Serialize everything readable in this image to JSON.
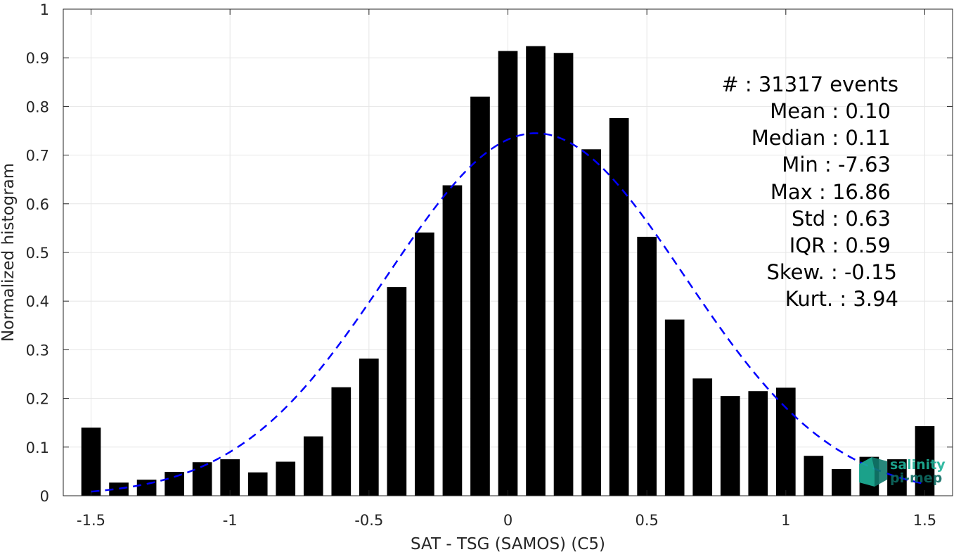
{
  "chart_data": {
    "type": "bar",
    "title": "",
    "xlabel": "SAT - TSG (SAMOS) (C5)",
    "ylabel": "Normalized histogram",
    "xlim": [
      -1.6,
      1.6
    ],
    "ylim": [
      0,
      1
    ],
    "grid": true,
    "bar_width": 0.07,
    "x_ticks": [
      -1.5,
      -1,
      -0.5,
      0,
      0.5,
      1,
      1.5
    ],
    "x_tick_labels": [
      "-1.5",
      "-1",
      "-0.5",
      "0",
      "0.5",
      "1",
      "1.5"
    ],
    "y_ticks": [
      0,
      0.1,
      0.2,
      0.3,
      0.4,
      0.5,
      0.6,
      0.7,
      0.8,
      0.9,
      1
    ],
    "y_tick_labels": [
      "0",
      "0.1",
      "0.2",
      "0.3",
      "0.4",
      "0.5",
      "0.6",
      "0.7",
      "0.8",
      "0.9",
      "1"
    ],
    "bars": {
      "x": [
        -1.5,
        -1.4,
        -1.3,
        -1.2,
        -1.1,
        -1.0,
        -0.9,
        -0.8,
        -0.7,
        -0.6,
        -0.5,
        -0.4,
        -0.3,
        -0.2,
        -0.1,
        0.0,
        0.1,
        0.2,
        0.3,
        0.4,
        0.5,
        0.6,
        0.7,
        0.8,
        0.9,
        1.0,
        1.1,
        1.2,
        1.3,
        1.4,
        1.5
      ],
      "values": [
        0.14,
        0.027,
        0.033,
        0.049,
        0.069,
        0.075,
        0.048,
        0.07,
        0.122,
        0.223,
        0.282,
        0.429,
        0.541,
        0.638,
        0.82,
        0.914,
        0.924,
        0.91,
        0.712,
        0.776,
        0.532,
        0.362,
        0.241,
        0.205,
        0.215,
        0.222,
        0.082,
        0.055,
        0.08,
        0.075,
        0.143
      ],
      "color": "#000000"
    },
    "fit_curve": {
      "style": "dashed",
      "color": "#0000ff",
      "mean": 0.1,
      "std": 0.535,
      "peak": 0.745,
      "x_range": [
        -1.5,
        1.5
      ]
    },
    "stats": [
      "#  : 31317 events",
      "Mean : 0.10",
      "Median : 0.11",
      "Min : -7.63",
      "Max : 16.86",
      "Std : 0.63",
      "IQR : 0.59",
      "Skew. : -0.15",
      "Kurt. : 3.94"
    ]
  },
  "logo": {
    "line1": "salinity",
    "line2": "pi-mep",
    "color_primary": "#1fb39a",
    "color_secondary": "#0e6b62"
  }
}
